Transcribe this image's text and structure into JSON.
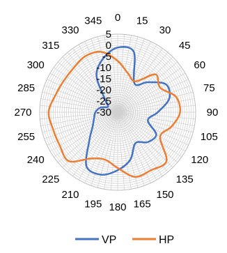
{
  "chart_data": {
    "type": "line",
    "subtype": "radar",
    "title": "",
    "angle_labels": [
      "0",
      "15",
      "30",
      "45",
      "60",
      "75",
      "90",
      "105",
      "120",
      "135",
      "150",
      "165",
      "180",
      "195",
      "210",
      "225",
      "240",
      "255",
      "270",
      "285",
      "300",
      "315",
      "330",
      "345"
    ],
    "radial_tick_labels": [
      "5",
      "0",
      "-5",
      "-10",
      "-15",
      "-20",
      "-25",
      "-30"
    ],
    "rlim": [
      -30,
      5
    ],
    "grid": true,
    "legend_position": "bottom",
    "series": [
      {
        "name": "VP",
        "color": "#4472C4",
        "values": [
          -1,
          -2,
          -15,
          -11,
          -5,
          -6,
          -12,
          -16,
          -10,
          -11,
          -14,
          -8,
          -4,
          -1,
          -2,
          -12,
          -17,
          -19,
          -20,
          -22,
          -25,
          -22,
          -11,
          -5
        ]
      },
      {
        "name": "HP",
        "color": "#ED7D31",
        "values": [
          -7,
          -12,
          -14,
          -6,
          -8,
          -3,
          -2,
          -5,
          -8,
          1,
          0,
          0,
          -5,
          -8,
          -6,
          1,
          0,
          0,
          1,
          -1,
          -2,
          -2,
          -1,
          -2
        ]
      }
    ]
  }
}
